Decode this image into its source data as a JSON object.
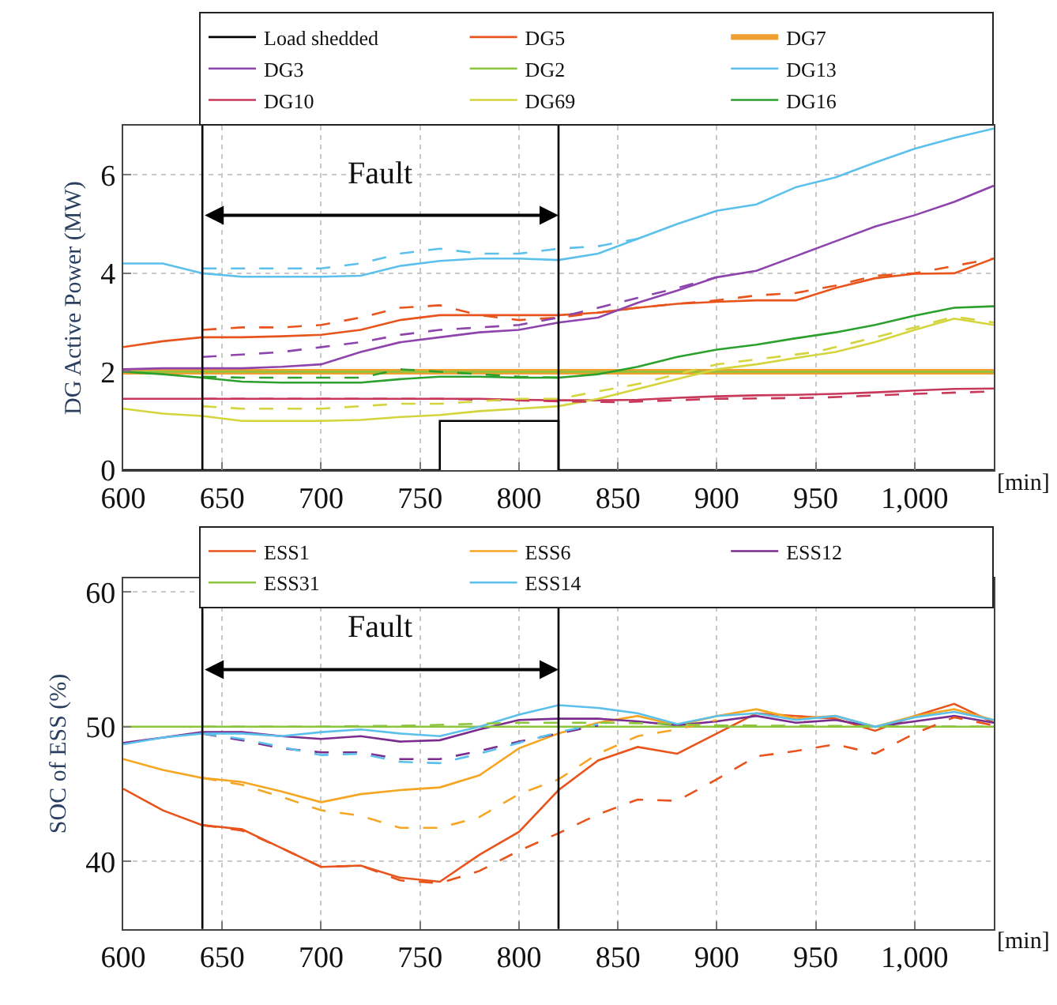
{
  "chart_data": [
    {
      "type": "line",
      "ylabel": "DG Active Power (MW)",
      "xlabel": "[min]",
      "xlim": [
        600,
        1040
      ],
      "ylim": [
        0,
        7
      ],
      "xticks": [
        600,
        650,
        700,
        750,
        800,
        850,
        900,
        950,
        {
          "value": 1000,
          "label": "1,000"
        }
      ],
      "yticks": [
        0,
        2,
        4,
        6
      ],
      "grid": true,
      "legend": "top right",
      "line_style": "solid",
      "x": [
        600,
        620,
        640,
        660,
        680,
        700,
        720,
        740,
        760,
        780,
        800,
        820,
        840,
        860,
        880,
        900,
        920,
        940,
        960,
        980,
        1000,
        1020,
        1040
      ],
      "ref_lines": [
        {
          "axis": "x",
          "value": 640,
          "color": "#000000"
        },
        {
          "axis": "x",
          "value": 820,
          "color": "#000000"
        }
      ],
      "annotations": [
        "Fault"
      ],
      "series": [
        {
          "name": "Load shedded",
          "type": "step",
          "color": "#000000",
          "x": [
            600,
            760,
            820,
            1040
          ],
          "values": [
            0,
            1,
            0,
            0
          ]
        },
        {
          "name": "DG5",
          "color": "#e8541c",
          "values": [
            2.5,
            2.62,
            2.7,
            2.7,
            2.72,
            2.75,
            2.85,
            3.05,
            3.15,
            3.15,
            3.15,
            3.15,
            3.2,
            3.3,
            3.38,
            3.42,
            3.45,
            3.45,
            3.7,
            3.9,
            3.99,
            4.0,
            4.3
          ]
        },
        {
          "name": "DG7",
          "color": "#f0a030",
          "values": [
            2.0,
            2.0,
            2.0,
            2.0,
            2.0,
            2.0,
            2.0,
            2.0,
            2.0,
            2.0,
            2.0,
            2.0,
            2.0,
            2.0,
            2.0,
            2.0,
            2.0,
            2.0,
            2.0,
            2.0,
            2.0,
            2.0,
            2.0
          ]
        },
        {
          "name": "DG3",
          "color": "#8e44ad",
          "values": [
            2.05,
            2.07,
            2.07,
            2.07,
            2.1,
            2.15,
            2.4,
            2.6,
            2.7,
            2.8,
            2.85,
            3.0,
            3.1,
            3.4,
            3.65,
            3.92,
            4.05,
            4.35,
            4.65,
            4.95,
            5.18,
            5.45,
            5.78
          ]
        },
        {
          "name": "DG2",
          "color": "#8cc43c",
          "values": [
            2.0,
            2.0,
            2.0,
            2.0,
            2.0,
            2.0,
            2.0,
            2.0,
            2.0,
            2.0,
            2.0,
            2.0,
            2.0,
            2.0,
            2.0,
            2.0,
            2.0,
            2.0,
            2.0,
            2.0,
            2.0,
            2.0,
            2.0
          ]
        },
        {
          "name": "DG13",
          "color": "#5bc0eb",
          "values": [
            4.2,
            4.2,
            4.0,
            3.93,
            3.93,
            3.93,
            3.95,
            4.15,
            4.25,
            4.3,
            4.3,
            4.27,
            4.4,
            4.7,
            5.0,
            5.27,
            5.4,
            5.75,
            5.95,
            6.25,
            6.53,
            6.75,
            6.94
          ]
        },
        {
          "name": "DG10",
          "color": "#c8385a",
          "values": [
            1.45,
            1.45,
            1.45,
            1.45,
            1.45,
            1.45,
            1.45,
            1.45,
            1.45,
            1.45,
            1.43,
            1.42,
            1.42,
            1.43,
            1.47,
            1.5,
            1.52,
            1.53,
            1.55,
            1.58,
            1.62,
            1.65,
            1.66
          ]
        },
        {
          "name": "DG69",
          "color": "#d4d43c",
          "values": [
            1.25,
            1.15,
            1.1,
            1.0,
            1.0,
            1.0,
            1.02,
            1.08,
            1.12,
            1.2,
            1.25,
            1.3,
            1.45,
            1.65,
            1.85,
            2.05,
            2.15,
            2.28,
            2.4,
            2.6,
            2.85,
            3.08,
            2.95
          ]
        },
        {
          "name": "DG16",
          "color": "#2ca02c",
          "values": [
            2.0,
            1.95,
            1.88,
            1.8,
            1.78,
            1.78,
            1.78,
            1.85,
            1.9,
            1.9,
            1.88,
            1.88,
            1.95,
            2.1,
            2.3,
            2.45,
            2.55,
            2.68,
            2.8,
            2.95,
            3.14,
            3.3,
            3.33
          ]
        },
        {
          "color": "#e8541c",
          "line_style": "dashed",
          "x": [
            640,
            660,
            680,
            700,
            720,
            740,
            760,
            780,
            800,
            820,
            840,
            860,
            880,
            900,
            920,
            940,
            960,
            980,
            1000,
            1020,
            1040
          ],
          "values": [
            2.85,
            2.9,
            2.9,
            2.95,
            3.1,
            3.3,
            3.35,
            3.15,
            3.05,
            3.1,
            3.2,
            3.3,
            3.38,
            3.45,
            3.55,
            3.6,
            3.75,
            3.95,
            4.0,
            4.15,
            4.3
          ]
        },
        {
          "color": "#8e44ad",
          "line_style": "dashed",
          "x": [
            640,
            660,
            680,
            700,
            720,
            740,
            760,
            780,
            800,
            820,
            840,
            860,
            880,
            900
          ],
          "values": [
            2.3,
            2.35,
            2.4,
            2.5,
            2.6,
            2.75,
            2.85,
            2.9,
            2.95,
            3.1,
            3.3,
            3.5,
            3.7,
            3.92
          ]
        },
        {
          "color": "#5bc0eb",
          "line_style": "dashed",
          "x": [
            640,
            660,
            680,
            700,
            720,
            740,
            760,
            780,
            800,
            820,
            840,
            860
          ],
          "values": [
            4.1,
            4.1,
            4.1,
            4.1,
            4.2,
            4.4,
            4.5,
            4.4,
            4.4,
            4.5,
            4.55,
            4.7
          ]
        },
        {
          "color": "#c8385a",
          "line_style": "dashed",
          "x": [
            640,
            700,
            760,
            820,
            850,
            900,
            950,
            1000,
            1040
          ],
          "values": [
            1.45,
            1.45,
            1.45,
            1.4,
            1.38,
            1.45,
            1.47,
            1.55,
            1.6
          ]
        },
        {
          "color": "#d4d43c",
          "line_style": "dashed",
          "x": [
            640,
            660,
            680,
            700,
            720,
            740,
            760,
            780,
            800,
            820,
            860,
            900,
            950,
            1000,
            1020,
            1040
          ],
          "values": [
            1.3,
            1.25,
            1.25,
            1.25,
            1.3,
            1.35,
            1.35,
            1.4,
            1.45,
            1.45,
            1.75,
            2.15,
            2.4,
            2.9,
            3.12,
            3.0
          ]
        },
        {
          "color": "#2ca02c",
          "line_style": "dashed",
          "x": [
            640,
            660,
            680,
            700,
            720,
            740,
            760,
            780,
            800,
            820
          ],
          "values": [
            1.9,
            1.88,
            1.88,
            1.88,
            1.88,
            2.05,
            2.0,
            1.95,
            1.9,
            1.88
          ]
        }
      ]
    },
    {
      "type": "line",
      "ylabel": "SOC of ESS (%)",
      "xlabel": "[min]",
      "xlim": [
        600,
        1040
      ],
      "ylim": [
        35,
        61
      ],
      "xticks": [
        600,
        650,
        700,
        750,
        800,
        850,
        900,
        950,
        {
          "value": 1000,
          "label": "1,000"
        }
      ],
      "yticks": [
        40,
        50,
        60
      ],
      "grid": true,
      "legend": "top right",
      "line_style": "solid",
      "x": [
        600,
        620,
        640,
        660,
        680,
        700,
        720,
        740,
        760,
        780,
        800,
        820,
        840,
        860,
        880,
        900,
        920,
        940,
        960,
        980,
        1000,
        1020,
        1040
      ],
      "ref_lines": [
        {
          "axis": "x",
          "value": 640,
          "color": "#000000"
        },
        {
          "axis": "x",
          "value": 820,
          "color": "#000000"
        }
      ],
      "annotations": [
        "Fault"
      ],
      "series": [
        {
          "name": "ESS1",
          "color": "#e8541c",
          "values": [
            45.4,
            43.8,
            42.7,
            42.4,
            41.0,
            39.6,
            39.7,
            38.8,
            38.5,
            40.5,
            42.2,
            45.3,
            47.5,
            48.5,
            48.0,
            49.5,
            51.0,
            50.8,
            50.6,
            49.7,
            50.8,
            51.7,
            50.3
          ]
        },
        {
          "name": "ESS6",
          "color": "#f5a623",
          "values": [
            47.6,
            46.8,
            46.2,
            45.9,
            45.2,
            44.4,
            45.0,
            45.3,
            45.5,
            46.4,
            48.4,
            49.5,
            50.3,
            50.8,
            50.1,
            50.8,
            51.3,
            50.6,
            50.8,
            50.0,
            50.8,
            51.3,
            50.5
          ]
        },
        {
          "name": "ESS12",
          "color": "#7b2d8e",
          "values": [
            48.8,
            49.2,
            49.6,
            49.6,
            49.3,
            49.1,
            49.3,
            48.9,
            49.0,
            49.8,
            50.5,
            50.6,
            50.6,
            50.4,
            50.1,
            50.4,
            50.8,
            50.3,
            50.5,
            50.0,
            50.4,
            50.8,
            50.3
          ]
        },
        {
          "name": "ESS31",
          "color": "#8cc43c",
          "values": [
            50.0,
            50.0,
            50.0,
            50.0,
            50.0,
            50.0,
            50.0,
            50.0,
            50.0,
            50.0,
            50.0,
            50.0,
            50.0,
            50.0,
            50.0,
            50.0,
            50.0,
            50.0,
            50.0,
            50.0,
            50.0,
            50.0,
            50.0
          ]
        },
        {
          "name": "ESS14",
          "color": "#5bc0eb",
          "values": [
            48.7,
            49.2,
            49.5,
            49.5,
            49.3,
            49.6,
            49.8,
            49.5,
            49.3,
            50.0,
            50.9,
            51.6,
            51.4,
            51.0,
            50.2,
            50.8,
            51.0,
            50.5,
            50.8,
            50.0,
            50.7,
            51.1,
            50.5
          ]
        },
        {
          "color": "#e8541c",
          "line_style": "dashed",
          "x": [
            640,
            660,
            680,
            700,
            720,
            740,
            760,
            780,
            800,
            820,
            840,
            860,
            880,
            900,
            920,
            940,
            960,
            980,
            1000,
            1020,
            1040
          ],
          "values": [
            42.7,
            42.3,
            41.0,
            39.6,
            39.7,
            38.6,
            38.4,
            39.3,
            40.8,
            42.1,
            43.5,
            44.6,
            44.5,
            46.1,
            47.8,
            48.2,
            48.7,
            48.0,
            49.5,
            50.7,
            50.1
          ]
        },
        {
          "color": "#f5a623",
          "line_style": "dashed",
          "x": [
            640,
            660,
            680,
            700,
            720,
            740,
            760,
            780,
            800,
            820,
            840,
            860,
            880,
            900
          ],
          "values": [
            46.2,
            45.7,
            44.8,
            43.8,
            43.4,
            42.5,
            42.5,
            43.3,
            45.0,
            46.1,
            48.0,
            49.3,
            49.8,
            50.5
          ]
        },
        {
          "color": "#7b2d8e",
          "line_style": "dashed",
          "x": [
            640,
            660,
            680,
            700,
            720,
            740,
            760,
            780,
            800,
            820,
            840
          ],
          "values": [
            49.5,
            49.0,
            48.4,
            48.1,
            48.1,
            47.6,
            47.6,
            48.2,
            48.9,
            49.5,
            50.1
          ]
        },
        {
          "color": "#8cc43c",
          "line_style": "dashed",
          "x": [
            640,
            700,
            750,
            800,
            850,
            900,
            1040
          ],
          "values": [
            50.0,
            50.0,
            50.1,
            50.3,
            50.3,
            50.1,
            50.0
          ]
        },
        {
          "color": "#5bc0eb",
          "line_style": "dashed",
          "x": [
            640,
            660,
            680,
            700,
            720,
            740,
            760,
            780,
            800,
            820,
            840
          ],
          "values": [
            49.5,
            49.1,
            48.5,
            47.9,
            48.0,
            47.4,
            47.3,
            48.0,
            48.8,
            49.6,
            50.2
          ]
        }
      ]
    }
  ]
}
